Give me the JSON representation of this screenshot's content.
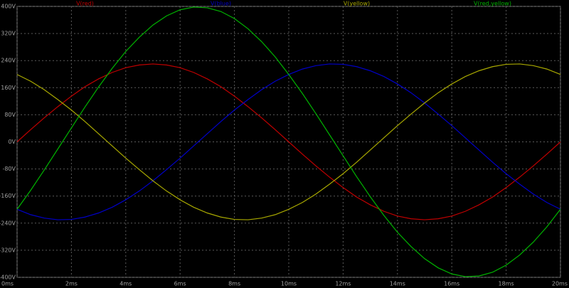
{
  "chart_data": {
    "type": "line",
    "x": [
      0,
      0.5,
      1,
      1.5,
      2,
      2.5,
      3,
      3.5,
      4,
      4.5,
      5,
      5.5,
      6,
      6.5,
      7,
      7.5,
      8,
      8.5,
      9,
      9.5,
      10,
      10.5,
      11,
      11.5,
      12,
      12.5,
      13,
      13.5,
      14,
      14.5,
      15,
      15.5,
      16,
      16.5,
      17,
      17.5,
      18,
      18.5,
      19,
      19.5,
      20
    ],
    "series": [
      {
        "name": "V(red)",
        "color": "#c00000",
        "values": [
          0,
          36,
          71,
          104,
          135,
          163,
          186,
          205,
          219,
          227,
          230,
          227,
          219,
          205,
          186,
          163,
          135,
          104,
          71,
          36,
          0,
          -36,
          -71,
          -104,
          -135,
          -163,
          -186,
          -205,
          -219,
          -227,
          -230,
          -227,
          -219,
          -205,
          -186,
          -163,
          -135,
          -104,
          -71,
          -36,
          0
        ]
      },
      {
        "name": "V(blue)",
        "color": "#0000c8",
        "values": [
          -199,
          -215,
          -225,
          -230,
          -229,
          -222,
          -210,
          -193,
          -171,
          -145,
          -115,
          -82,
          -48,
          -12,
          24,
          60,
          94,
          125,
          154,
          179,
          199,
          215,
          225,
          230,
          229,
          222,
          210,
          193,
          171,
          145,
          115,
          82,
          48,
          12,
          -24,
          -60,
          -94,
          -125,
          -154,
          -179,
          -199
        ]
      },
      {
        "name": "V(yellow)",
        "color": "#a8a800",
        "values": [
          199,
          179,
          154,
          125,
          94,
          60,
          24,
          -12,
          -48,
          -82,
          -115,
          -145,
          -171,
          -193,
          -210,
          -222,
          -229,
          -230,
          -225,
          -215,
          -199,
          -179,
          -154,
          -125,
          -94,
          -60,
          -24,
          12,
          48,
          82,
          115,
          145,
          171,
          193,
          210,
          222,
          229,
          230,
          225,
          215,
          199
        ]
      },
      {
        "name": "V(red,yellow)",
        "color": "#00b400",
        "values": [
          -199,
          -143,
          -83,
          -21,
          41,
          103,
          162,
          217,
          267,
          309,
          345,
          372,
          390,
          398,
          396,
          385,
          364,
          334,
          296,
          251,
          199,
          143,
          83,
          21,
          -41,
          -103,
          -162,
          -217,
          -267,
          -309,
          -345,
          -372,
          -390,
          -398,
          -396,
          -385,
          -364,
          -334,
          -296,
          -251,
          -199
        ]
      }
    ],
    "xlim": [
      0,
      20
    ],
    "xticks": [
      {
        "value": 0,
        "label": "0ms"
      },
      {
        "value": 2,
        "label": "2ms"
      },
      {
        "value": 4,
        "label": "4ms"
      },
      {
        "value": 6,
        "label": "6ms"
      },
      {
        "value": 8,
        "label": "8ms"
      },
      {
        "value": 10,
        "label": "10ms"
      },
      {
        "value": 12,
        "label": "12ms"
      },
      {
        "value": 14,
        "label": "14ms"
      },
      {
        "value": 16,
        "label": "16ms"
      },
      {
        "value": 18,
        "label": "18ms"
      },
      {
        "value": 20,
        "label": "20ms"
      }
    ],
    "ylim": [
      -400,
      400
    ],
    "yticks": [
      {
        "value": -400,
        "label": "-400V"
      },
      {
        "value": -320,
        "label": "-320V"
      },
      {
        "value": -240,
        "label": "-240V"
      },
      {
        "value": -160,
        "label": "-160V"
      },
      {
        "value": -80,
        "label": "-80V"
      },
      {
        "value": 0,
        "label": "0V"
      },
      {
        "value": 80,
        "label": "80V"
      },
      {
        "value": 160,
        "label": "160V"
      },
      {
        "value": 240,
        "label": "240V"
      },
      {
        "value": 320,
        "label": "320V"
      },
      {
        "value": 400,
        "label": "400V"
      }
    ],
    "grid": true
  }
}
